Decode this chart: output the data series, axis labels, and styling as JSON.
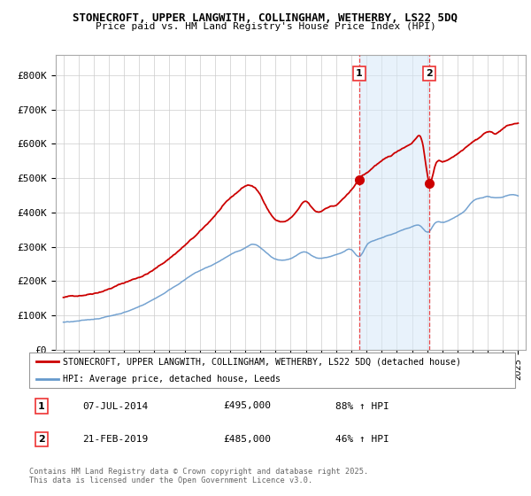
{
  "title1": "STONECROFT, UPPER LANGWITH, COLLINGHAM, WETHERBY, LS22 5DQ",
  "title2": "Price paid vs. HM Land Registry's House Price Index (HPI)",
  "legend_label1": "STONECROFT, UPPER LANGWITH, COLLINGHAM, WETHERBY, LS22 5DQ (detached house)",
  "legend_label2": "HPI: Average price, detached house, Leeds",
  "transaction1_date": "07-JUL-2014",
  "transaction1_price": "£495,000",
  "transaction1_hpi": "88% ↑ HPI",
  "transaction2_date": "21-FEB-2019",
  "transaction2_price": "£485,000",
  "transaction2_hpi": "46% ↑ HPI",
  "footer": "Contains HM Land Registry data © Crown copyright and database right 2025.\nThis data is licensed under the Open Government Licence v3.0.",
  "red_color": "#cc0000",
  "blue_color": "#6699cc",
  "vline_color": "#ee3333",
  "background_color": "#ffffff",
  "plot_bg_color": "#ffffff",
  "transaction1_x": 2014.52,
  "transaction2_x": 2019.13,
  "transaction1_y": 495000,
  "transaction2_y": 485000,
  "ylim_min": 0,
  "ylim_max": 860000,
  "xlim_min": 1994.5,
  "xlim_max": 2025.5,
  "yticks": [
    0,
    100000,
    200000,
    300000,
    400000,
    500000,
    600000,
    700000,
    800000
  ],
  "ytick_labels": [
    "£0",
    "£100K",
    "£200K",
    "£300K",
    "£400K",
    "£500K",
    "£600K",
    "£700K",
    "£800K"
  ]
}
